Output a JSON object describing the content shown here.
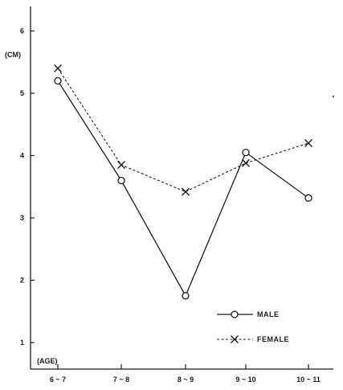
{
  "chart_data": {
    "type": "line",
    "title": "",
    "ylabel": "(CM)",
    "xlabel": "(AGE)",
    "categories": [
      "6 ~ 7",
      "7 ~ 8",
      "8 ~ 9",
      "9 ~ 10",
      "10 ~ 11"
    ],
    "yticks": [
      "1",
      "2",
      "3",
      "4",
      "5",
      "6"
    ],
    "ylim": [
      0.5,
      6.5
    ],
    "grid": false,
    "legend_position": "bottom-right",
    "series": [
      {
        "name": "MALE",
        "marker": "circle",
        "line_style": "solid",
        "color": "#1a1a1a",
        "values": [
          5.2,
          3.6,
          1.75,
          4.05,
          3.32
        ]
      },
      {
        "name": "FEMALE",
        "marker": "x",
        "line_style": "dashed",
        "color": "#1a1a1a",
        "values": [
          5.4,
          3.85,
          3.42,
          3.88,
          4.2
        ]
      }
    ]
  }
}
